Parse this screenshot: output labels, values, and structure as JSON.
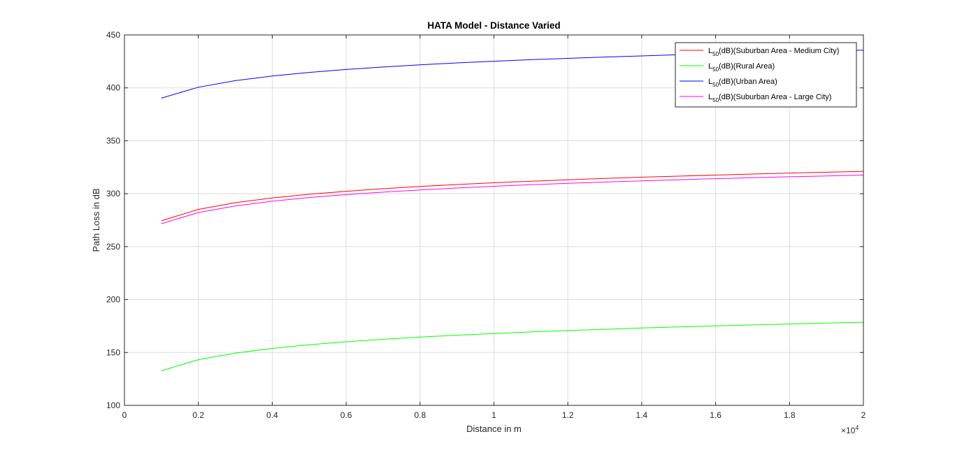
{
  "chart_data": {
    "type": "line",
    "title": "HATA Model - Distance Varied",
    "xlabel": "Distance in m",
    "ylabel": "Path Loss in dB",
    "xlim": [
      0,
      20000
    ],
    "ylim": [
      100,
      450
    ],
    "x_exponent_label": "×10",
    "x_exponent_power": "4",
    "x_ticks": [
      0,
      2000,
      4000,
      6000,
      8000,
      10000,
      12000,
      14000,
      16000,
      18000,
      20000
    ],
    "x_tick_labels": [
      "0",
      "0.2",
      "0.4",
      "0.6",
      "0.8",
      "1",
      "1.2",
      "1.4",
      "1.6",
      "1.8",
      "2"
    ],
    "y_ticks": [
      100,
      150,
      200,
      250,
      300,
      350,
      400,
      450
    ],
    "y_tick_labels": [
      "100",
      "150",
      "200",
      "250",
      "300",
      "350",
      "400",
      "450"
    ],
    "grid": true,
    "legend_position": "top-right",
    "x": [
      1000,
      2000,
      3000,
      4000,
      5000,
      6000,
      7000,
      8000,
      9000,
      10000,
      11000,
      12000,
      13000,
      14000,
      15000,
      16000,
      17000,
      18000,
      19000,
      20000
    ],
    "series": [
      {
        "legend_base": "L",
        "legend_sub": "50",
        "legend_rest": "(dB)(Suburban Area - Medium City)",
        "color": "#ff0000",
        "values": [
          274.4,
          285.2,
          291.5,
          296.0,
          299.5,
          302.3,
          304.7,
          306.8,
          308.7,
          310.3,
          311.8,
          313.2,
          314.4,
          315.6,
          316.6,
          317.6,
          318.6,
          319.5,
          320.3,
          321.1
        ]
      },
      {
        "legend_base": "L",
        "legend_sub": "50",
        "legend_rest": "(dB)(Rural Area)",
        "color": "#00ff00",
        "values": [
          132.6,
          143.2,
          149.4,
          153.8,
          157.3,
          160.1,
          162.4,
          164.5,
          166.3,
          167.9,
          169.4,
          170.7,
          171.9,
          173.1,
          174.1,
          175.1,
          176.0,
          176.9,
          177.7,
          178.5
        ]
      },
      {
        "legend_base": "L",
        "legend_sub": "50",
        "legend_rest": "(dB)(Urban Area)",
        "color": "#0000ff",
        "values": [
          390.3,
          400.6,
          406.8,
          411.2,
          414.6,
          417.4,
          419.7,
          421.8,
          423.6,
          425.2,
          426.6,
          427.9,
          429.1,
          430.2,
          431.3,
          432.3,
          433.2,
          434.0,
          434.9,
          435.6
        ]
      },
      {
        "legend_base": "L",
        "legend_sub": "50",
        "legend_rest": "(dB)(Suburban Area - Large City)",
        "color": "#ff00ff",
        "values": [
          271.6,
          282.2,
          288.5,
          292.9,
          296.4,
          299.2,
          301.5,
          303.6,
          305.4,
          307.0,
          308.5,
          309.8,
          311.0,
          312.2,
          313.2,
          314.2,
          315.1,
          316.0,
          316.8,
          317.6
        ]
      }
    ]
  }
}
